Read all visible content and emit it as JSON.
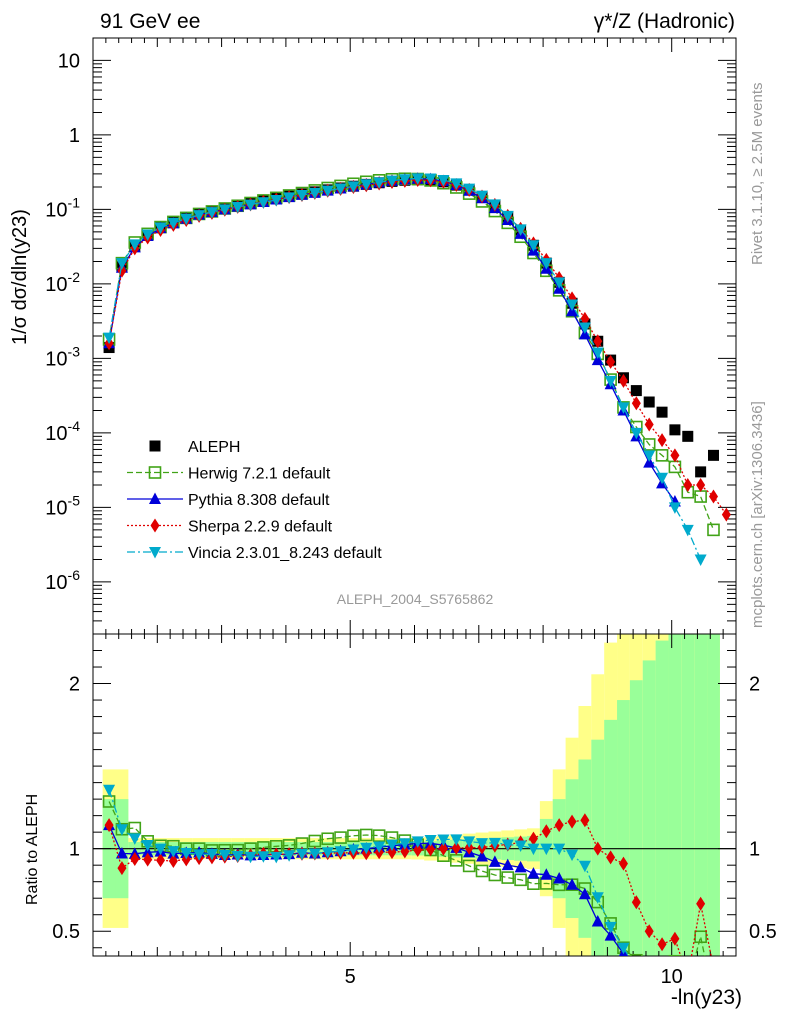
{
  "header": {
    "left": "91 GeV ee",
    "right": "γ*/Z (Hadronic)"
  },
  "side_text": {
    "top": "Rivet 3.1.10, ≥ 2.5M events",
    "bottom": "mcplots.cern.ch [arXiv:1306.3436]"
  },
  "analysis_id": "ALEPH_2004_S5765862",
  "axes": {
    "main_ylabel": "1/σ  dσ/dln(y23)",
    "ratio_ylabel": "Ratio to ALEPH",
    "xlabel": "-ln(y23)"
  },
  "chart_data": {
    "type": "scatter",
    "x_range": [
      1.0,
      11.0
    ],
    "main": {
      "yscale": "log",
      "ylim": [
        2e-07,
        20
      ],
      "ytick_labels": [
        "10",
        "1",
        "10^-1",
        "10^-2",
        "10^-3",
        "10^-4",
        "10^-5",
        "10^-6"
      ]
    },
    "ratio": {
      "ylim": [
        0.35,
        2.3
      ],
      "ytick_labels": [
        "0.5",
        "1",
        "2"
      ],
      "reference_line": 1.0
    },
    "xtick_labels": [
      "5",
      "10"
    ],
    "x": [
      1.25,
      1.45,
      1.65,
      1.85,
      2.05,
      2.25,
      2.45,
      2.65,
      2.85,
      3.05,
      3.25,
      3.45,
      3.65,
      3.85,
      4.05,
      4.25,
      4.45,
      4.65,
      4.85,
      5.05,
      5.25,
      5.45,
      5.65,
      5.85,
      6.05,
      6.25,
      6.45,
      6.65,
      6.85,
      7.05,
      7.25,
      7.45,
      7.65,
      7.85,
      8.05,
      8.25,
      8.45,
      8.65,
      8.85,
      9.05,
      9.25,
      9.45,
      9.65,
      9.85,
      10.05,
      10.25,
      10.45,
      10.65,
      10.85
    ],
    "series": [
      {
        "name": "ALEPH",
        "color": "#000000",
        "marker": "square-filled",
        "values": [
          0.0014,
          0.017,
          0.032,
          0.045,
          0.057,
          0.067,
          0.077,
          0.087,
          0.095,
          0.104,
          0.113,
          0.122,
          0.131,
          0.141,
          0.151,
          0.161,
          0.172,
          0.183,
          0.194,
          0.205,
          0.217,
          0.228,
          0.238,
          0.246,
          0.25,
          0.247,
          0.235,
          0.212,
          0.182,
          0.148,
          0.113,
          0.08,
          0.053,
          0.033,
          0.019,
          0.0105,
          0.0055,
          0.0029,
          0.0017,
          0.00095,
          0.00055,
          0.00037,
          0.00026,
          0.00019,
          0.00011,
          9e-05,
          3e-05,
          5e-05,
          null
        ]
      },
      {
        "name": "Herwig 7.2.1 default",
        "color": "#41a317",
        "marker": "square-open",
        "line": "dashed",
        "values": [
          0.0018,
          0.019,
          0.036,
          0.047,
          0.058,
          0.068,
          0.077,
          0.087,
          0.094,
          0.103,
          0.112,
          0.122,
          0.132,
          0.143,
          0.154,
          0.166,
          0.18,
          0.194,
          0.207,
          0.221,
          0.235,
          0.246,
          0.254,
          0.258,
          0.256,
          0.245,
          0.225,
          0.197,
          0.163,
          0.128,
          0.095,
          0.066,
          0.043,
          0.026,
          0.015,
          0.0082,
          0.0043,
          0.0022,
          0.00115,
          0.00052,
          0.00022,
          0.00012,
          7e-05,
          5e-05,
          3.5e-05,
          1.6e-05,
          1.4e-05,
          5e-06,
          null
        ]
      },
      {
        "name": "Pythia 8.308 default",
        "color": "#0000d9",
        "marker": "triangle-up",
        "line": "solid",
        "values": [
          0.0016,
          0.0165,
          0.031,
          0.044,
          0.056,
          0.065,
          0.075,
          0.085,
          0.092,
          0.1,
          0.109,
          0.117,
          0.126,
          0.136,
          0.146,
          0.157,
          0.167,
          0.179,
          0.191,
          0.204,
          0.217,
          0.23,
          0.242,
          0.252,
          0.258,
          0.255,
          0.24,
          0.213,
          0.178,
          0.141,
          0.104,
          0.072,
          0.047,
          0.028,
          0.016,
          0.0086,
          0.0043,
          0.0021,
          0.00095,
          0.00045,
          0.0002,
          9e-05,
          4e-05,
          2.1e-05,
          1.2e-05,
          null,
          null,
          null,
          null
        ]
      },
      {
        "name": "Sherpa 2.2.9 default",
        "color": "#e00000",
        "marker": "diamond",
        "line": "dotted",
        "values": [
          0.0016,
          0.015,
          0.03,
          0.042,
          0.053,
          0.062,
          0.072,
          0.082,
          0.09,
          0.099,
          0.108,
          0.117,
          0.127,
          0.136,
          0.146,
          0.156,
          0.167,
          0.178,
          0.189,
          0.2,
          0.211,
          0.223,
          0.233,
          0.242,
          0.248,
          0.246,
          0.235,
          0.213,
          0.183,
          0.149,
          0.115,
          0.082,
          0.055,
          0.035,
          0.021,
          0.012,
          0.0064,
          0.0034,
          0.0017,
          0.0009,
          0.0005,
          0.00025,
          0.00013,
          8e-05,
          5e-05,
          2e-05,
          2e-05,
          1.4e-05,
          8e-06
        ]
      },
      {
        "name": "Vincia 2.3.01_8.243 default",
        "color": "#00aacc",
        "marker": "triangle-down",
        "line": "dashdot",
        "values": [
          0.0019,
          0.019,
          0.034,
          0.046,
          0.057,
          0.066,
          0.075,
          0.084,
          0.092,
          0.1,
          0.108,
          0.116,
          0.125,
          0.134,
          0.145,
          0.156,
          0.167,
          0.179,
          0.191,
          0.204,
          0.218,
          0.231,
          0.244,
          0.254,
          0.261,
          0.26,
          0.248,
          0.224,
          0.19,
          0.153,
          0.117,
          0.082,
          0.054,
          0.033,
          0.019,
          0.0105,
          0.0053,
          0.0026,
          0.0012,
          0.0005,
          0.00022,
          0.0001,
          5e-05,
          2.5e-05,
          1e-05,
          5e-06,
          2e-06,
          null,
          null
        ]
      }
    ],
    "legend": {
      "placement": "lower-left"
    }
  }
}
